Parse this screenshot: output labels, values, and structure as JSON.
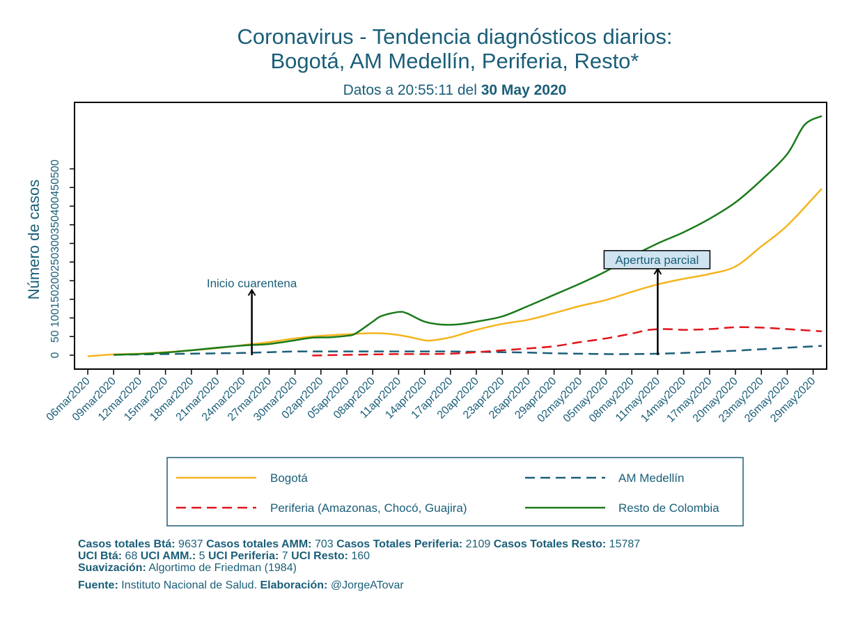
{
  "chart_data": {
    "type": "line",
    "title": "Coronavirus - Tendencia diagnósticos diarios:",
    "title_line2": "Bogotá, AM Medellín, Periferia, Resto*",
    "subtitle_prefix": "Datos a 20:55:11 del ",
    "subtitle_date": "30 May 2020",
    "ylabel": "Número de casos",
    "xlabel": "",
    "yticks": [
      0,
      50,
      100,
      150,
      200,
      250,
      300,
      350,
      400,
      450,
      500
    ],
    "ylim": [
      -40,
      680
    ],
    "x_start": "2020-03-06",
    "x_end": "2020-05-30",
    "xtick_labels": [
      "06mar2020",
      "09mar2020",
      "12mar2020",
      "15mar2020",
      "18mar2020",
      "21mar2020",
      "24mar2020",
      "27mar2020",
      "30mar2020",
      "02apr2020",
      "05apr2020",
      "08apr2020",
      "11apr2020",
      "14apr2020",
      "17apr2020",
      "20apr2020",
      "23apr2020",
      "26apr2020",
      "29apr2020",
      "02may2020",
      "05may2020",
      "08may2020",
      "11may2020",
      "14may2020",
      "17may2020",
      "20may2020",
      "23may2020",
      "26may2020",
      "29may2020"
    ],
    "grid": false,
    "legend_position": "bottom",
    "series": [
      {
        "name": "Bogotá",
        "color": "#f5b41e",
        "dash": "solid",
        "points": [
          [
            "2020-03-06",
            -3
          ],
          [
            "2020-03-09",
            2
          ],
          [
            "2020-03-12",
            4
          ],
          [
            "2020-03-15",
            8
          ],
          [
            "2020-03-18",
            13
          ],
          [
            "2020-03-21",
            19
          ],
          [
            "2020-03-24",
            27
          ],
          [
            "2020-03-27",
            35
          ],
          [
            "2020-03-30",
            45
          ],
          [
            "2020-04-02",
            52
          ],
          [
            "2020-04-05",
            56
          ],
          [
            "2020-04-08",
            59
          ],
          [
            "2020-04-10",
            57
          ],
          [
            "2020-04-12",
            50
          ],
          [
            "2020-04-14",
            40
          ],
          [
            "2020-04-15",
            40
          ],
          [
            "2020-04-17",
            48
          ],
          [
            "2020-04-20",
            68
          ],
          [
            "2020-04-23",
            84
          ],
          [
            "2020-04-26",
            95
          ],
          [
            "2020-04-29",
            113
          ],
          [
            "2020-05-02",
            132
          ],
          [
            "2020-05-05",
            148
          ],
          [
            "2020-05-08",
            170
          ],
          [
            "2020-05-11",
            190
          ],
          [
            "2020-05-14",
            205
          ],
          [
            "2020-05-17",
            218
          ],
          [
            "2020-05-20",
            238
          ],
          [
            "2020-05-23",
            292
          ],
          [
            "2020-05-26",
            348
          ],
          [
            "2020-05-30",
            447
          ]
        ]
      },
      {
        "name": "AM Medellín",
        "color": "#1a5e78",
        "dash": "dashed",
        "points": [
          [
            "2020-03-09",
            1
          ],
          [
            "2020-03-12",
            2
          ],
          [
            "2020-03-15",
            3
          ],
          [
            "2020-03-18",
            4
          ],
          [
            "2020-03-21",
            5
          ],
          [
            "2020-03-24",
            6
          ],
          [
            "2020-03-27",
            8
          ],
          [
            "2020-03-30",
            10
          ],
          [
            "2020-04-02",
            10
          ],
          [
            "2020-04-05",
            10
          ],
          [
            "2020-04-08",
            10
          ],
          [
            "2020-04-11",
            10
          ],
          [
            "2020-04-14",
            10
          ],
          [
            "2020-04-17",
            10
          ],
          [
            "2020-04-20",
            9
          ],
          [
            "2020-04-23",
            8
          ],
          [
            "2020-04-26",
            7
          ],
          [
            "2020-04-29",
            5
          ],
          [
            "2020-05-02",
            4
          ],
          [
            "2020-05-05",
            3
          ],
          [
            "2020-05-08",
            3
          ],
          [
            "2020-05-11",
            4
          ],
          [
            "2020-05-14",
            6
          ],
          [
            "2020-05-17",
            9
          ],
          [
            "2020-05-20",
            12
          ],
          [
            "2020-05-23",
            16
          ],
          [
            "2020-05-26",
            20
          ],
          [
            "2020-05-30",
            25
          ]
        ]
      },
      {
        "name": "Periferia (Amazonas, Chocó, Guajira)",
        "color": "#e0141a",
        "dash": "dashed",
        "points": [
          [
            "2020-04-01",
            -1
          ],
          [
            "2020-04-05",
            1
          ],
          [
            "2020-04-08",
            2
          ],
          [
            "2020-04-11",
            3
          ],
          [
            "2020-04-14",
            3
          ],
          [
            "2020-04-17",
            4
          ],
          [
            "2020-04-20",
            8
          ],
          [
            "2020-04-23",
            13
          ],
          [
            "2020-04-26",
            18
          ],
          [
            "2020-04-29",
            24
          ],
          [
            "2020-05-02",
            35
          ],
          [
            "2020-05-05",
            45
          ],
          [
            "2020-05-08",
            58
          ],
          [
            "2020-05-10",
            68
          ],
          [
            "2020-05-12",
            70
          ],
          [
            "2020-05-14",
            68
          ],
          [
            "2020-05-17",
            70
          ],
          [
            "2020-05-20",
            75
          ],
          [
            "2020-05-23",
            74
          ],
          [
            "2020-05-26",
            70
          ],
          [
            "2020-05-30",
            64
          ]
        ]
      },
      {
        "name": "Resto de Colombia",
        "color": "#1a7a1a",
        "dash": "solid",
        "points": [
          [
            "2020-03-09",
            1
          ],
          [
            "2020-03-12",
            3
          ],
          [
            "2020-03-15",
            7
          ],
          [
            "2020-03-18",
            13
          ],
          [
            "2020-03-21",
            20
          ],
          [
            "2020-03-24",
            26
          ],
          [
            "2020-03-27",
            30
          ],
          [
            "2020-03-30",
            40
          ],
          [
            "2020-04-01",
            47
          ],
          [
            "2020-04-03",
            48
          ],
          [
            "2020-04-05",
            52
          ],
          [
            "2020-04-06",
            58
          ],
          [
            "2020-04-08",
            90
          ],
          [
            "2020-04-09",
            105
          ],
          [
            "2020-04-11",
            116
          ],
          [
            "2020-04-12",
            112
          ],
          [
            "2020-04-14",
            90
          ],
          [
            "2020-04-16",
            82
          ],
          [
            "2020-04-18",
            83
          ],
          [
            "2020-04-20",
            90
          ],
          [
            "2020-04-23",
            104
          ],
          [
            "2020-04-26",
            132
          ],
          [
            "2020-04-29",
            162
          ],
          [
            "2020-05-02",
            192
          ],
          [
            "2020-05-05",
            225
          ],
          [
            "2020-05-08",
            265
          ],
          [
            "2020-05-11",
            300
          ],
          [
            "2020-05-14",
            330
          ],
          [
            "2020-05-17",
            366
          ],
          [
            "2020-05-20",
            410
          ],
          [
            "2020-05-23",
            470
          ],
          [
            "2020-05-26",
            540
          ],
          [
            "2020-05-28",
            618
          ],
          [
            "2020-05-30",
            642
          ]
        ]
      }
    ],
    "annotations": [
      {
        "text": "Inicio cuarentena",
        "date": "2020-03-25",
        "y_from": 0,
        "y_to": 175,
        "boxed": false
      },
      {
        "text": "Apertura parcial",
        "date": "2020-05-11",
        "y_from": 0,
        "y_to": 232,
        "boxed": true
      }
    ]
  },
  "notes": {
    "line1": [
      {
        "b": "Casos totales Btá:"
      },
      {
        "t": " 9637 "
      },
      {
        "b": "Casos totales AMM:"
      },
      {
        "t": " 703  "
      },
      {
        "b": "Casos Totales Periferia:"
      },
      {
        "t": " 2109 "
      },
      {
        "b": "Casos Totales Resto:"
      },
      {
        "t": " 15787"
      }
    ],
    "line2": [
      {
        "b": "UCI Btá:"
      },
      {
        "t": " 68 "
      },
      {
        "b": "UCI AMM.:"
      },
      {
        "t": " 5 "
      },
      {
        "b": "UCI Periferia:"
      },
      {
        "t": " 7 "
      },
      {
        "b": "UCI Resto:"
      },
      {
        "t": " 160"
      }
    ],
    "line3": [
      {
        "b": "Suavización:"
      },
      {
        "t": " Algortimo de Friedman (1984)"
      }
    ],
    "line4": [
      {
        "b": "Fuente:"
      },
      {
        "t": " Instituto Nacional de Salud. "
      },
      {
        "b": "Elaboración:"
      },
      {
        "t": " @JorgeATovar"
      }
    ]
  },
  "colors": {
    "text": "#1a5e78",
    "axis": "#000000",
    "annotation_box": "#cfe4f0",
    "legend_border": "#1a5e78"
  }
}
